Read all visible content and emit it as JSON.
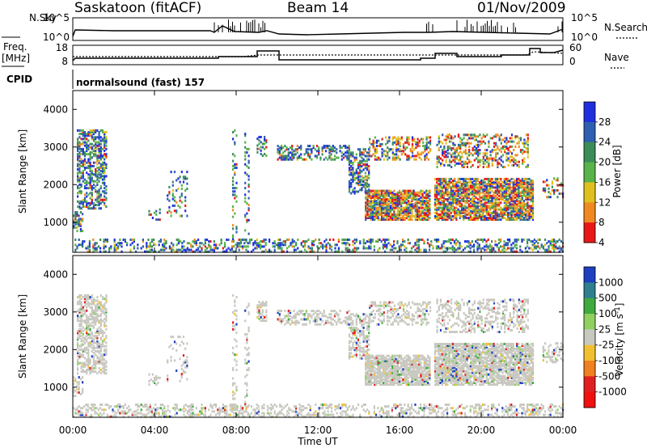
{
  "header": {
    "site": "Saskatoon (fitACF)",
    "beam": "Beam 14",
    "date": "01/Nov/2009"
  },
  "top_panels": {
    "noise_left_label": "N.Sky",
    "noise_left_ticks": [
      "10^5",
      "10^0"
    ],
    "noise_right_label": "N.Search",
    "noise_right_ticks": [
      "10^5",
      "10^0"
    ],
    "freq_label_1": "Freq.",
    "freq_label_2": "[MHz]",
    "freq_ticks": [
      "18",
      "8"
    ],
    "nave_label": "Nave",
    "nave_ticks": [
      "60",
      "0"
    ],
    "cpid_label": "CPID",
    "cpid_text": "normalsound (fast) 157"
  },
  "chart_data": [
    {
      "type": "heatmap",
      "name": "power-panel",
      "ylabel": "Slant Range [km]",
      "yticks": [
        "1000",
        "2000",
        "3000",
        "4000"
      ],
      "ylim": [
        200,
        4500
      ],
      "colorbar_label": "Power [dB]",
      "colorbar_ticks": [
        "4",
        "8",
        "12",
        "16",
        "20",
        "24",
        "28"
      ],
      "colors": [
        "#1f2fe0",
        "#2f5fb0",
        "#3c8c5a",
        "#5ab34a",
        "#e0c020",
        "#f08a20",
        "#e81818"
      ]
    },
    {
      "type": "heatmap",
      "name": "velocity-panel",
      "ylabel": "Slant Range [km]",
      "yticks": [
        "1000",
        "2000",
        "3000",
        "4000"
      ],
      "ylim": [
        200,
        4500
      ],
      "colorbar_label": "Velocity [m s",
      "colorbar_label_sup": "-1",
      "colorbar_ticks": [
        "1000",
        "500",
        "100",
        "25",
        "-25",
        "-100",
        "-500",
        "-1000"
      ],
      "colors": [
        "#1f3fc0",
        "#2f7f8f",
        "#3faa3f",
        "#8fd05f",
        "#c8c8c0",
        "#f0c030",
        "#f08020",
        "#e02020",
        "#f01010"
      ]
    }
  ],
  "xaxis": {
    "label": "Time UT",
    "ticks": [
      "00:00",
      "04:00",
      "08:00",
      "12:00",
      "16:00",
      "20:00",
      "00:00"
    ]
  }
}
